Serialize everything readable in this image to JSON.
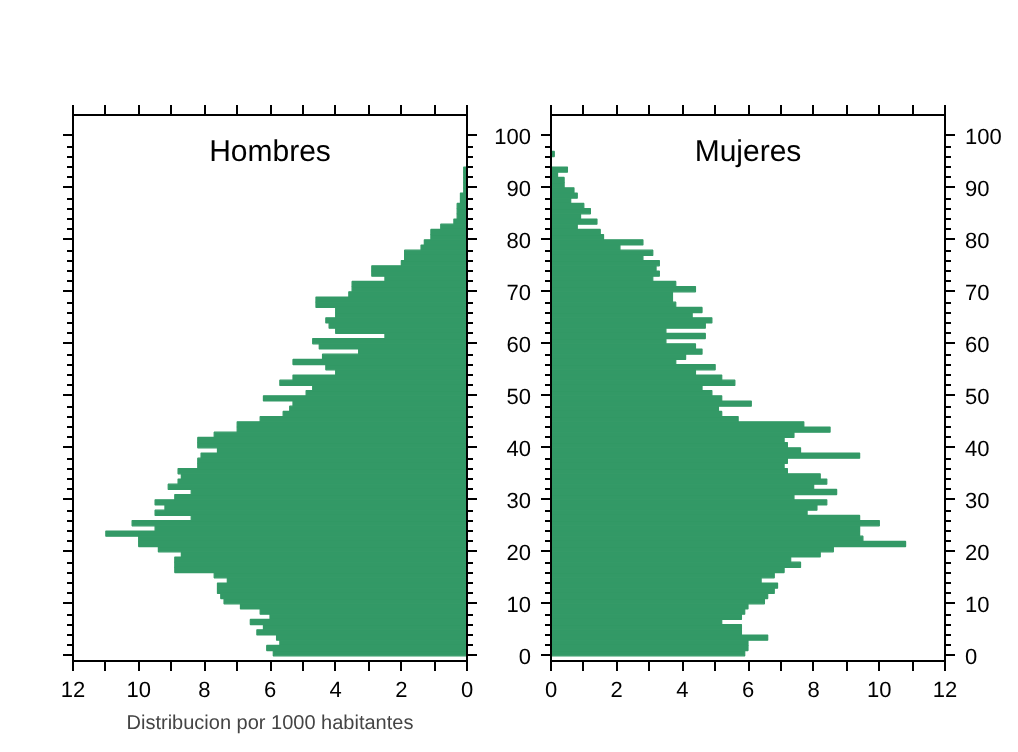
{
  "chart_data": [
    {
      "type": "bar",
      "orientation": "horizontal",
      "title": "Hombres",
      "xlabel": "Distribucion por 1000 habitantes",
      "tick_labels": "x",
      "x": [
        0,
        1,
        2,
        3,
        4,
        5,
        6,
        7,
        8,
        9,
        10,
        11,
        12,
        13,
        14,
        15,
        16,
        17,
        18,
        19,
        20,
        21,
        22,
        23,
        24,
        25,
        26,
        27,
        28,
        29,
        30,
        31,
        32,
        33,
        34,
        35,
        36,
        37,
        38,
        39,
        40,
        41,
        42,
        43,
        44,
        45,
        46,
        47,
        48,
        49,
        50,
        51,
        52,
        53,
        54,
        55,
        56,
        57,
        58,
        59,
        60,
        61,
        62,
        63,
        64,
        65,
        66,
        67,
        68,
        69,
        70,
        71,
        72,
        73,
        74,
        75,
        76,
        77,
        78,
        79,
        80,
        81,
        82,
        83,
        84,
        85,
        86,
        87,
        88,
        89,
        90,
        91,
        92,
        93,
        94,
        95,
        96,
        97,
        98,
        99,
        100
      ],
      "series": [
        {
          "color": "#339966",
          "values": [
            5.9,
            6.1,
            5.7,
            5.8,
            6.4,
            6.2,
            6.6,
            6.0,
            6.3,
            6.9,
            7.4,
            7.5,
            7.6,
            7.6,
            7.3,
            7.7,
            8.9,
            8.9,
            8.9,
            8.7,
            9.4,
            10.0,
            10.0,
            11.0,
            9.5,
            10.2,
            8.4,
            9.5,
            9.2,
            9.5,
            8.9,
            8.4,
            9.1,
            8.8,
            8.7,
            8.8,
            8.2,
            8.2,
            8.1,
            7.6,
            8.2,
            8.2,
            7.7,
            7.0,
            7.0,
            6.3,
            5.6,
            5.4,
            5.3,
            6.2,
            4.9,
            4.7,
            5.7,
            5.3,
            4.0,
            4.3,
            5.3,
            4.4,
            3.3,
            4.5,
            4.7,
            2.5,
            4.0,
            4.2,
            4.3,
            4.0,
            4.0,
            4.6,
            4.6,
            3.6,
            3.5,
            3.5,
            2.5,
            2.9,
            2.9,
            2.0,
            1.9,
            1.9,
            1.4,
            1.3,
            1.1,
            1.1,
            0.8,
            0.4,
            0.3,
            0.3,
            0.3,
            0.2,
            0.2,
            0.1,
            0.1,
            0.1,
            0.1,
            0.1,
            0.0,
            0.0,
            0.0,
            0.0,
            0.0,
            0.0,
            0.0
          ]
        }
      ],
      "xlim": [
        12,
        0
      ],
      "xticks": [
        0,
        {
          "value": 1,
          "label": null
        },
        2,
        {
          "value": 3,
          "label": null
        },
        4,
        {
          "value": 5,
          "label": null
        },
        6,
        {
          "value": 7,
          "label": null
        },
        8,
        {
          "value": 9,
          "label": null
        },
        10,
        {
          "value": 11,
          "label": null
        },
        12
      ],
      "ylim": [
        -1,
        104
      ],
      "yticks": [
        0,
        10,
        20,
        30,
        40,
        50,
        60,
        70,
        80,
        90,
        100
      ]
    },
    {
      "type": "bar",
      "orientation": "horizontal",
      "title": "Mujeres",
      "x": [
        0,
        1,
        2,
        3,
        4,
        5,
        6,
        7,
        8,
        9,
        10,
        11,
        12,
        13,
        14,
        15,
        16,
        17,
        18,
        19,
        20,
        21,
        22,
        23,
        24,
        25,
        26,
        27,
        28,
        29,
        30,
        31,
        32,
        33,
        34,
        35,
        36,
        37,
        38,
        39,
        40,
        41,
        42,
        43,
        44,
        45,
        46,
        47,
        48,
        49,
        50,
        51,
        52,
        53,
        54,
        55,
        56,
        57,
        58,
        59,
        60,
        61,
        62,
        63,
        64,
        65,
        66,
        67,
        68,
        69,
        70,
        71,
        72,
        73,
        74,
        75,
        76,
        77,
        78,
        79,
        80,
        81,
        82,
        83,
        84,
        85,
        86,
        87,
        88,
        89,
        90,
        91,
        92,
        93,
        94,
        95,
        96,
        97,
        98,
        99,
        100
      ],
      "series": [
        {
          "color": "#339966",
          "values": [
            5.9,
            6.0,
            6.0,
            6.6,
            5.8,
            5.8,
            5.2,
            5.8,
            5.9,
            6.0,
            6.5,
            6.6,
            6.8,
            6.9,
            6.4,
            6.8,
            7.1,
            7.6,
            7.3,
            8.2,
            8.6,
            10.8,
            9.5,
            9.4,
            9.4,
            10.0,
            9.4,
            7.8,
            8.1,
            8.4,
            7.4,
            8.7,
            8.0,
            8.4,
            8.2,
            7.2,
            7.1,
            7.2,
            9.4,
            7.6,
            7.2,
            7.1,
            7.4,
            8.5,
            7.7,
            5.7,
            5.2,
            5.1,
            6.1,
            5.2,
            4.9,
            4.6,
            5.6,
            5.2,
            4.4,
            5.0,
            3.8,
            4.1,
            4.6,
            4.4,
            3.5,
            4.7,
            3.5,
            4.7,
            4.9,
            4.3,
            4.6,
            3.8,
            3.7,
            3.7,
            4.4,
            3.8,
            3.1,
            3.3,
            3.2,
            3.3,
            2.8,
            3.1,
            2.1,
            2.8,
            1.6,
            1.5,
            0.8,
            1.4,
            0.9,
            1.2,
            1.0,
            0.6,
            0.8,
            0.7,
            0.4,
            0.4,
            0.2,
            0.5,
            0.0,
            0.0,
            0.1,
            0.0,
            0.0,
            0.0,
            0.0
          ]
        }
      ],
      "xlim": [
        0,
        12
      ],
      "xticks": [
        0,
        {
          "value": 1,
          "label": null
        },
        2,
        {
          "value": 3,
          "label": null
        },
        4,
        {
          "value": 5,
          "label": null
        },
        6,
        {
          "value": 7,
          "label": null
        },
        8,
        {
          "value": 9,
          "label": null
        },
        10,
        {
          "value": 11,
          "label": null
        },
        12
      ],
      "ylim": [
        -1,
        104
      ],
      "yticks": [
        0,
        10,
        20,
        30,
        40,
        50,
        60,
        70,
        80,
        90,
        100
      ],
      "y2lim": [
        -1,
        104
      ],
      "y2ticks": [
        0,
        10,
        20,
        30,
        40,
        50,
        60,
        70,
        80,
        90,
        100
      ]
    }
  ]
}
